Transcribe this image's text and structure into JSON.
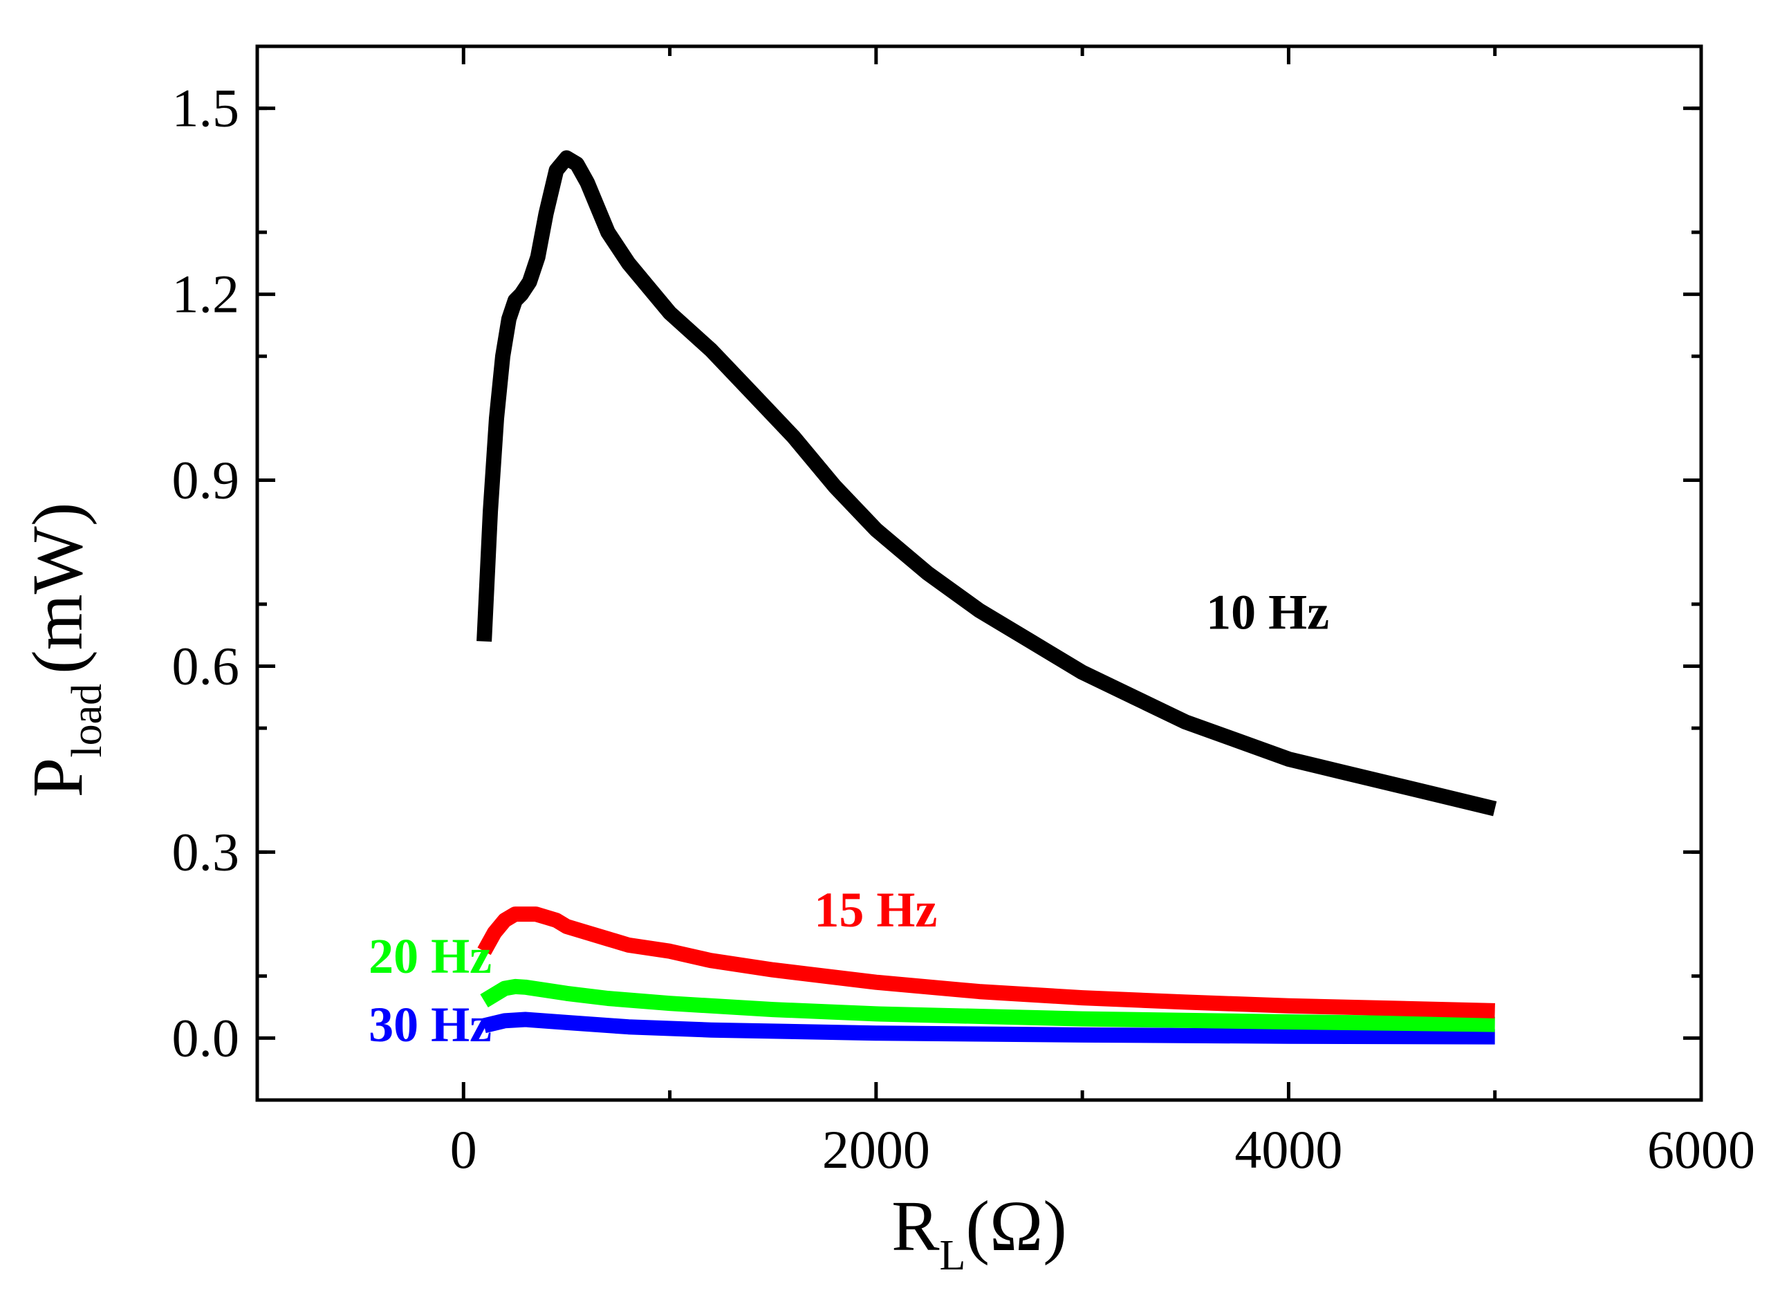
{
  "chart_data": {
    "type": "line",
    "title": "",
    "xlabel": {
      "main": "R",
      "sub": "L",
      "unit": "(Ω)"
    },
    "ylabel": {
      "main": "P",
      "sub": "load",
      "unit": "(mW)"
    },
    "xlim": [
      -1000,
      6000
    ],
    "ylim": [
      -0.1,
      1.6
    ],
    "xticks": [
      {
        "value": 0,
        "label": "0"
      },
      {
        "value": 2000,
        "label": "2000"
      },
      {
        "value": 4000,
        "label": "4000"
      },
      {
        "value": 6000,
        "label": "6000"
      }
    ],
    "yticks": [
      {
        "value": 0.0,
        "label": "0.0"
      },
      {
        "value": 0.3,
        "label": "0.3"
      },
      {
        "value": 0.6,
        "label": "0.6"
      },
      {
        "value": 0.9,
        "label": "0.9"
      },
      {
        "value": 1.2,
        "label": "1.2"
      },
      {
        "value": 1.5,
        "label": "1.5"
      }
    ],
    "grid": false,
    "series": [
      {
        "name": "10 Hz",
        "color": "#000000",
        "x": [
          100,
          130,
          160,
          190,
          220,
          250,
          280,
          320,
          360,
          400,
          450,
          500,
          550,
          600,
          650,
          700,
          800,
          900,
          1000,
          1200,
          1400,
          1600,
          1800,
          2000,
          2250,
          2500,
          2750,
          3000,
          3250,
          3500,
          3750,
          4000,
          4250,
          4500,
          4750,
          5000
        ],
        "y": [
          0.64,
          0.85,
          1.0,
          1.1,
          1.16,
          1.19,
          1.2,
          1.22,
          1.26,
          1.33,
          1.4,
          1.42,
          1.41,
          1.38,
          1.34,
          1.3,
          1.25,
          1.21,
          1.17,
          1.11,
          1.04,
          0.97,
          0.89,
          0.82,
          0.75,
          0.69,
          0.64,
          0.59,
          0.55,
          0.51,
          0.48,
          0.45,
          0.43,
          0.41,
          0.39,
          0.37
        ],
        "label_pos": [
          3600,
          0.66
        ]
      },
      {
        "name": "15 Hz",
        "color": "#ff0000",
        "x": [
          100,
          150,
          200,
          250,
          300,
          350,
          400,
          450,
          500,
          600,
          700,
          800,
          1000,
          1200,
          1500,
          2000,
          2500,
          3000,
          3500,
          4000,
          4500,
          5000
        ],
        "y": [
          0.14,
          0.17,
          0.19,
          0.2,
          0.2,
          0.2,
          0.195,
          0.19,
          0.18,
          0.17,
          0.16,
          0.15,
          0.14,
          0.125,
          0.11,
          0.09,
          0.075,
          0.065,
          0.058,
          0.052,
          0.048,
          0.044
        ],
        "label_pos": [
          1700,
          0.18
        ]
      },
      {
        "name": "20 Hz",
        "color": "#00ff00",
        "x": [
          100,
          150,
          200,
          250,
          300,
          400,
          500,
          700,
          1000,
          1500,
          2000,
          3000,
          4000,
          5000
        ],
        "y": [
          0.06,
          0.07,
          0.08,
          0.083,
          0.082,
          0.077,
          0.072,
          0.064,
          0.056,
          0.046,
          0.039,
          0.031,
          0.026,
          0.022
        ],
        "label_pos": [
          -460,
          0.105
        ]
      },
      {
        "name": "30 Hz",
        "color": "#0000ff",
        "x": [
          100,
          200,
          300,
          500,
          800,
          1200,
          2000,
          3000,
          4000,
          5000
        ],
        "y": [
          0.02,
          0.028,
          0.03,
          0.025,
          0.018,
          0.013,
          0.008,
          0.005,
          0.003,
          0.002
        ],
        "label_pos": [
          -460,
          -0.005
        ]
      }
    ]
  }
}
